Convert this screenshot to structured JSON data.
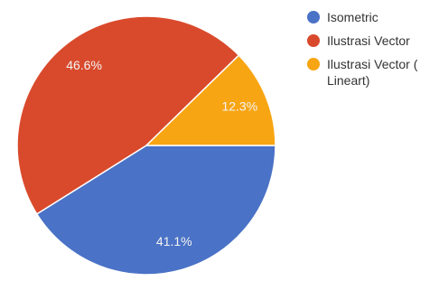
{
  "chart_data": {
    "type": "pie",
    "categories": [
      "Isometric",
      "Ilustrasi Vector",
      "Ilustrasi Vector ( Lineart)"
    ],
    "values": [
      41.1,
      46.6,
      12.3
    ],
    "value_labels": [
      "41.1%",
      "46.6%",
      "12.3%"
    ],
    "colors": [
      "#4a72c6",
      "#d94a2c",
      "#f8a513"
    ],
    "legend": "right"
  }
}
